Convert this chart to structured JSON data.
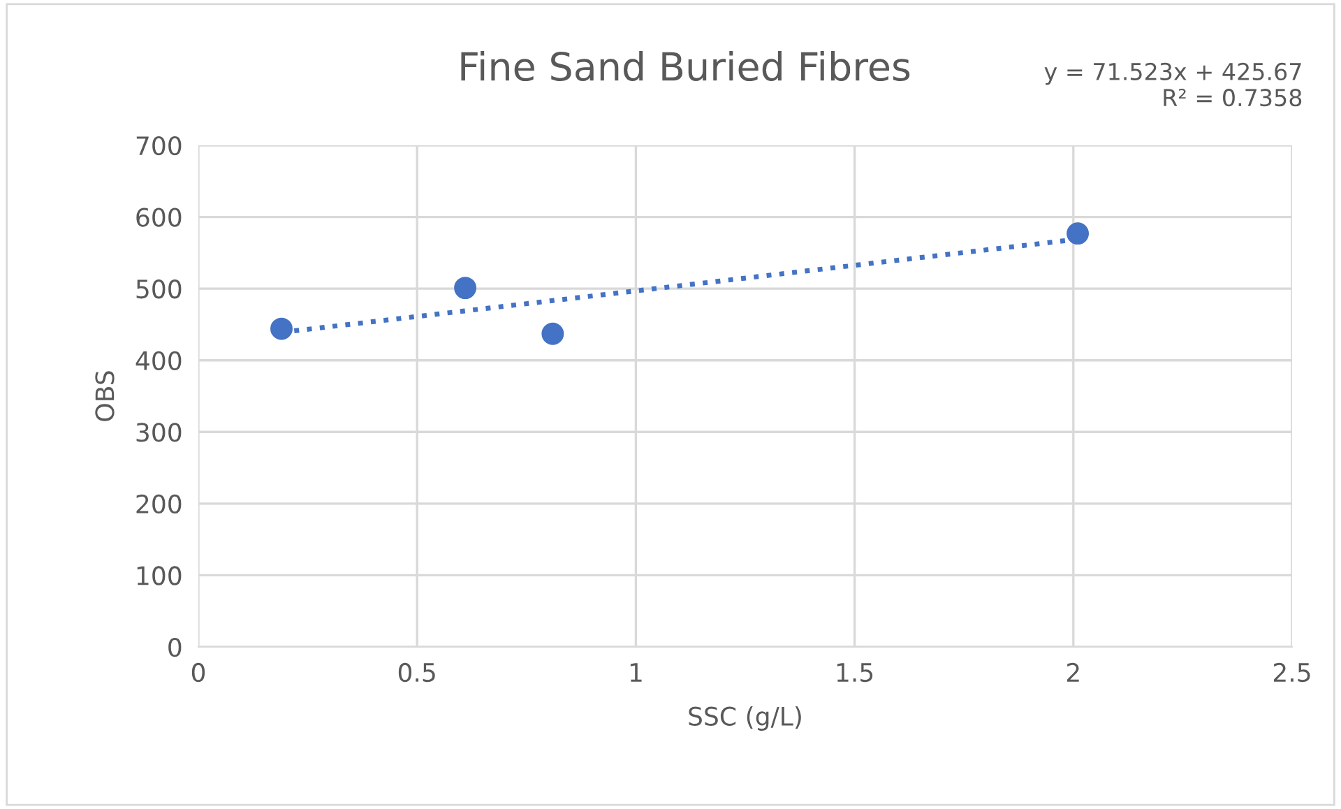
{
  "chart_data": {
    "type": "scatter",
    "title": "Fine Sand Buried Fibres",
    "xlabel": "SSC (g/L)",
    "ylabel": "OBS",
    "series": [
      {
        "color": "#4472c4",
        "x": [
          0.19,
          0.61,
          0.81,
          2.01
        ],
        "values": [
          444,
          501,
          437,
          577
        ],
        "marker": "circle"
      },
      {
        "type": "line",
        "color": "#4472c4",
        "x": [
          0.19,
          2.01
        ],
        "values": [
          439,
          569
        ],
        "line_style": "dotted",
        "marker": "none"
      }
    ],
    "annotations": [
      "y = 71.523x + 425.67\nR² = 0.7358"
    ],
    "xlim": [
      0,
      2.5
    ],
    "xticks": [
      0,
      0.5,
      1,
      1.5,
      2,
      2.5
    ],
    "ylim": [
      0,
      700
    ],
    "yticks": [
      0,
      100,
      200,
      300,
      400,
      500,
      600,
      700
    ],
    "grid": true
  }
}
